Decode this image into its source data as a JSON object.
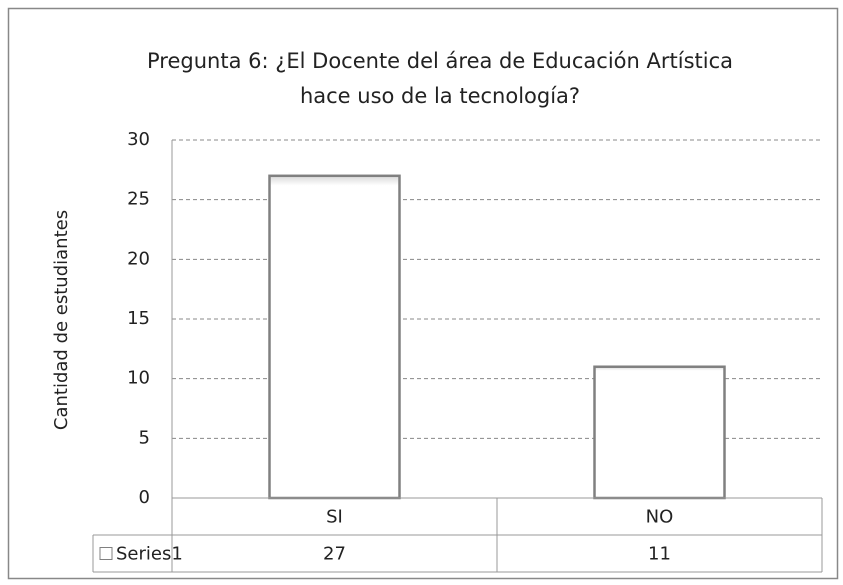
{
  "chart_data": {
    "type": "bar",
    "title": [
      "Pregunta 6: ¿El Docente del área de Educación Artística",
      "hace uso de la tecnología?"
    ],
    "y_label": "Cantidad de estudiantes",
    "categories": [
      "SI",
      "NO"
    ],
    "series": [
      {
        "name": "Series1",
        "color": "#ffffff",
        "edge_color": "#808080",
        "values": [
          27,
          11
        ]
      }
    ],
    "ylim": [
      0,
      30
    ],
    "yticks": [
      0,
      5,
      10,
      15,
      20,
      25,
      30
    ],
    "grid": true,
    "data_table": true
  }
}
